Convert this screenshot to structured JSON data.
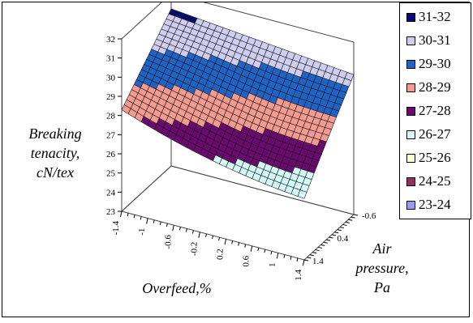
{
  "chart_data": {
    "type": "surface",
    "zlabel": "Breaking tenacity, cN/tex",
    "xlabel": "Overfeed,%",
    "ylabel": "Air pressure, Pa",
    "zlim": [
      23,
      32
    ],
    "z_ticks": [
      "23",
      "24",
      "25",
      "26",
      "27",
      "28",
      "29",
      "30",
      "31",
      "32"
    ],
    "x_ticks": [
      "-1.4",
      "-1",
      "-0.6",
      "-0.2",
      "0.2",
      "0.6",
      "1",
      "1.4"
    ],
    "y_ticks": [
      "-0.6",
      "0.4",
      "1.4"
    ],
    "corner_values": {
      "overfeed_-1.4_pressure_-0.6": 31.2,
      "overfeed_1.4_pressure_-0.6": 30.3,
      "overfeed_-1.4_pressure_1.4": 28.3,
      "overfeed_1.4_pressure_1.4": 26.2
    },
    "legend": [
      {
        "label": "31-32",
        "color": "#0a0a6e"
      },
      {
        "label": "30-31",
        "color": "#cfcdf0"
      },
      {
        "label": "29-30",
        "color": "#1f63c6"
      },
      {
        "label": "28-29",
        "color": "#f49a90"
      },
      {
        "label": "27-28",
        "color": "#6b0a6e"
      },
      {
        "label": "26-27",
        "color": "#d4fafa"
      },
      {
        "label": "25-26",
        "color": "#fcfcd2"
      },
      {
        "label": "24-25",
        "color": "#93315e"
      },
      {
        "label": "23-24",
        "color": "#9a9af2"
      }
    ]
  },
  "labels": {
    "z_title_line1": "Breaking",
    "z_title_line2": "tenacity,",
    "z_title_line3": "cN/tex",
    "x_title": "Overfeed,%",
    "y_title_line1": "Air",
    "y_title_line2": "pressure,",
    "y_title_line3": "Pa"
  }
}
